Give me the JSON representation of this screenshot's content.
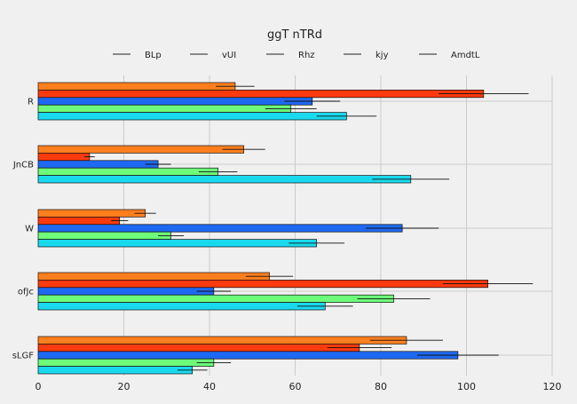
{
  "chart_data": {
    "type": "bar",
    "orientation": "horizontal",
    "title": "ggT nTRd",
    "xlabel": "",
    "ylabel": "",
    "xlim": [
      0,
      120
    ],
    "x_ticks": [
      0,
      20,
      40,
      60,
      80,
      100,
      120
    ],
    "grid": true,
    "legend_position": "top",
    "categories": [
      "R",
      "JnCB",
      "W",
      "ofJc",
      "sLGF"
    ],
    "series": [
      {
        "name": "BLp",
        "color": "#ff7f1e",
        "values": [
          46,
          48,
          25,
          54,
          86
        ],
        "errors": [
          4.5,
          5,
          2.5,
          5.5,
          8.5
        ]
      },
      {
        "name": "vUI",
        "color": "#fb3a0e",
        "values": [
          104,
          12,
          19,
          105,
          75
        ],
        "errors": [
          10.5,
          1.2,
          2,
          10.5,
          7.5
        ]
      },
      {
        "name": "Rhz",
        "color": "#1e69f2",
        "values": [
          64,
          28,
          85,
          41,
          98
        ],
        "errors": [
          6.5,
          3,
          8.5,
          4,
          9.5
        ]
      },
      {
        "name": "kjy",
        "color": "#6dfc7a",
        "values": [
          59,
          42,
          31,
          83,
          41
        ],
        "errors": [
          6,
          4.5,
          3,
          8.5,
          4
        ]
      },
      {
        "name": "AmdtL",
        "color": "#19d9ee",
        "values": [
          72,
          87,
          65,
          67,
          36
        ],
        "errors": [
          7,
          9,
          6.5,
          6.5,
          3.5
        ]
      }
    ]
  }
}
